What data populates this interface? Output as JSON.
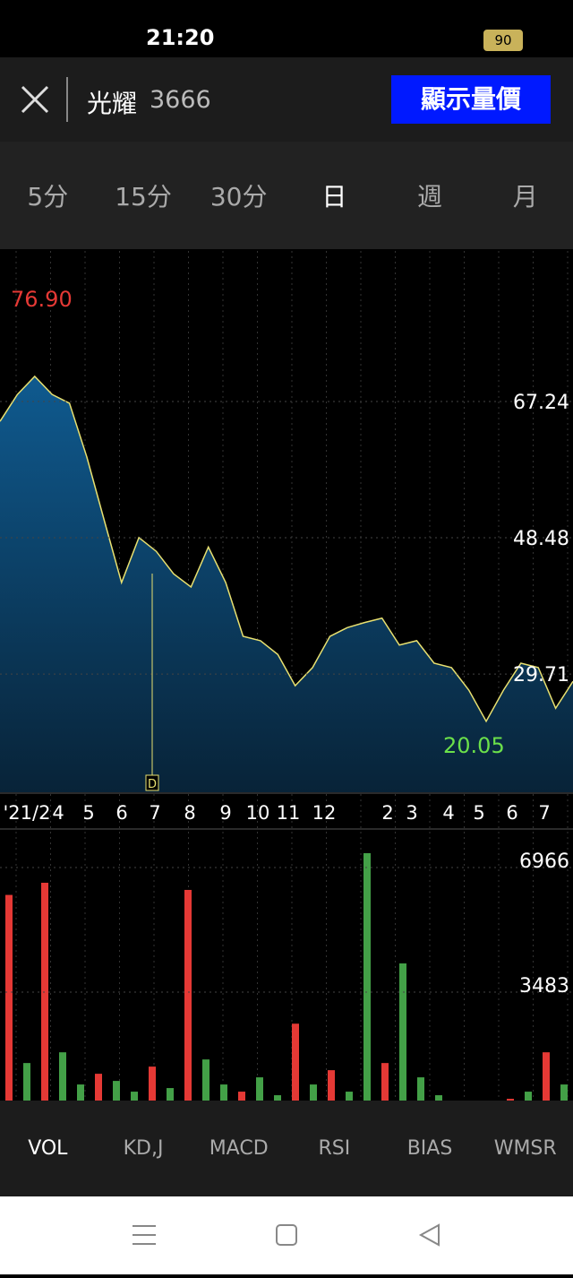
{
  "status_bar": {
    "time": "21:20",
    "battery": "90"
  },
  "header": {
    "name": "光耀",
    "code": "3666",
    "button": "顯示量價"
  },
  "period_tabs": [
    "5分",
    "15分",
    "30分",
    "日",
    "週",
    "月"
  ],
  "chart_data": [
    {
      "type": "area",
      "ylim": [
        13.43,
        87.97
      ],
      "yticks": [
        29.71,
        48.48,
        67.24
      ],
      "color": "#e8e070",
      "fill": "#0e4a78",
      "values": [
        64.5,
        68.2,
        70.7,
        68.2,
        67,
        59.6,
        50.9,
        42.3,
        48.5,
        46.6,
        43.5,
        41.7,
        47.2,
        42.3,
        34.9,
        34.3,
        32.4,
        28.1,
        30.6,
        34.9,
        36.1,
        36.8,
        37.4,
        33.7,
        34.3,
        31.2,
        30.6,
        27.5,
        23.2,
        27.5,
        31.2,
        30.6,
        25,
        28.7
      ],
      "high": {
        "value": 76.9,
        "label": "76.90"
      },
      "low": 20.05,
      "marker": "D",
      "x_labels": [
        "'21/2",
        "4",
        "5",
        "6",
        "7",
        "8",
        "9",
        "10",
        "11",
        "12",
        "2",
        "3",
        "4",
        "5",
        "6",
        "7"
      ]
    },
    {
      "type": "bar",
      "ylim": [
        0,
        8043
      ],
      "yticks": [
        3483,
        6966
      ],
      "values": [
        6200,
        1500,
        6540,
        1800,
        900,
        1200,
        1000,
        700,
        1400,
        800,
        6340,
        1600,
        900,
        700,
        1100,
        600,
        2600,
        900,
        1300,
        700,
        7367,
        1500,
        4285,
        1100,
        600,
        400,
        300,
        350,
        500,
        700,
        1800,
        900
      ],
      "colors": [
        "#e53935",
        "#43a047",
        "#e53935",
        "#43a047",
        "#43a047",
        "#e53935",
        "#43a047",
        "#43a047",
        "#e53935",
        "#43a047",
        "#e53935",
        "#43a047",
        "#43a047",
        "#e53935",
        "#43a047",
        "#43a047",
        "#e53935",
        "#43a047",
        "#e53935",
        "#43a047",
        "#43a047",
        "#e53935",
        "#43a047",
        "#43a047",
        "#43a047",
        "#e53935",
        "#43a047",
        "#43a047",
        "#e53935",
        "#43a047",
        "#e53935",
        "#43a047"
      ]
    }
  ],
  "indicator_tabs": [
    "VOL",
    "KD,J",
    "MACD",
    "RSI",
    "BIAS",
    "WMSR"
  ]
}
